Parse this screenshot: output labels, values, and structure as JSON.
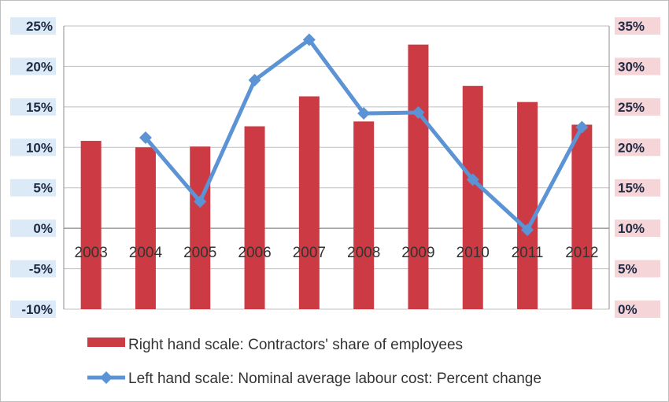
{
  "chart_data": {
    "type": "bar+line",
    "categories": [
      "2003",
      "2004",
      "2005",
      "2006",
      "2007",
      "2008",
      "2009",
      "2010",
      "2011",
      "2012"
    ],
    "series": [
      {
        "name": "Right hand scale: Contractors' share of employees",
        "type": "bar",
        "axis": "right",
        "color": "#cc3a43",
        "values": [
          20.8,
          20.0,
          20.1,
          22.6,
          26.3,
          23.2,
          32.7,
          27.6,
          25.6,
          22.8
        ]
      },
      {
        "name": "Left hand scale: Nominal average labour cost: Percent change",
        "type": "line",
        "axis": "left",
        "color": "#5b93d4",
        "values": [
          null,
          11.2,
          3.3,
          18.3,
          23.3,
          14.2,
          14.3,
          6.0,
          -0.2,
          12.5
        ]
      }
    ],
    "left_axis": {
      "min": -10,
      "max": 25,
      "step": 5,
      "tick_labels": [
        "-10%",
        "-5%",
        "0%",
        "5%",
        "10%",
        "15%",
        "20%",
        "25%"
      ]
    },
    "right_axis": {
      "min": 0,
      "max": 35,
      "step": 5,
      "tick_labels": [
        "0%",
        "5%",
        "10%",
        "15%",
        "20%",
        "25%",
        "30%",
        "35%"
      ]
    },
    "grid": true,
    "legend_position": "bottom",
    "colors": {
      "left_tick_bg": "#dce9f7",
      "right_tick_bg": "#f5d5d8",
      "grid": "#bfbfbf"
    }
  }
}
